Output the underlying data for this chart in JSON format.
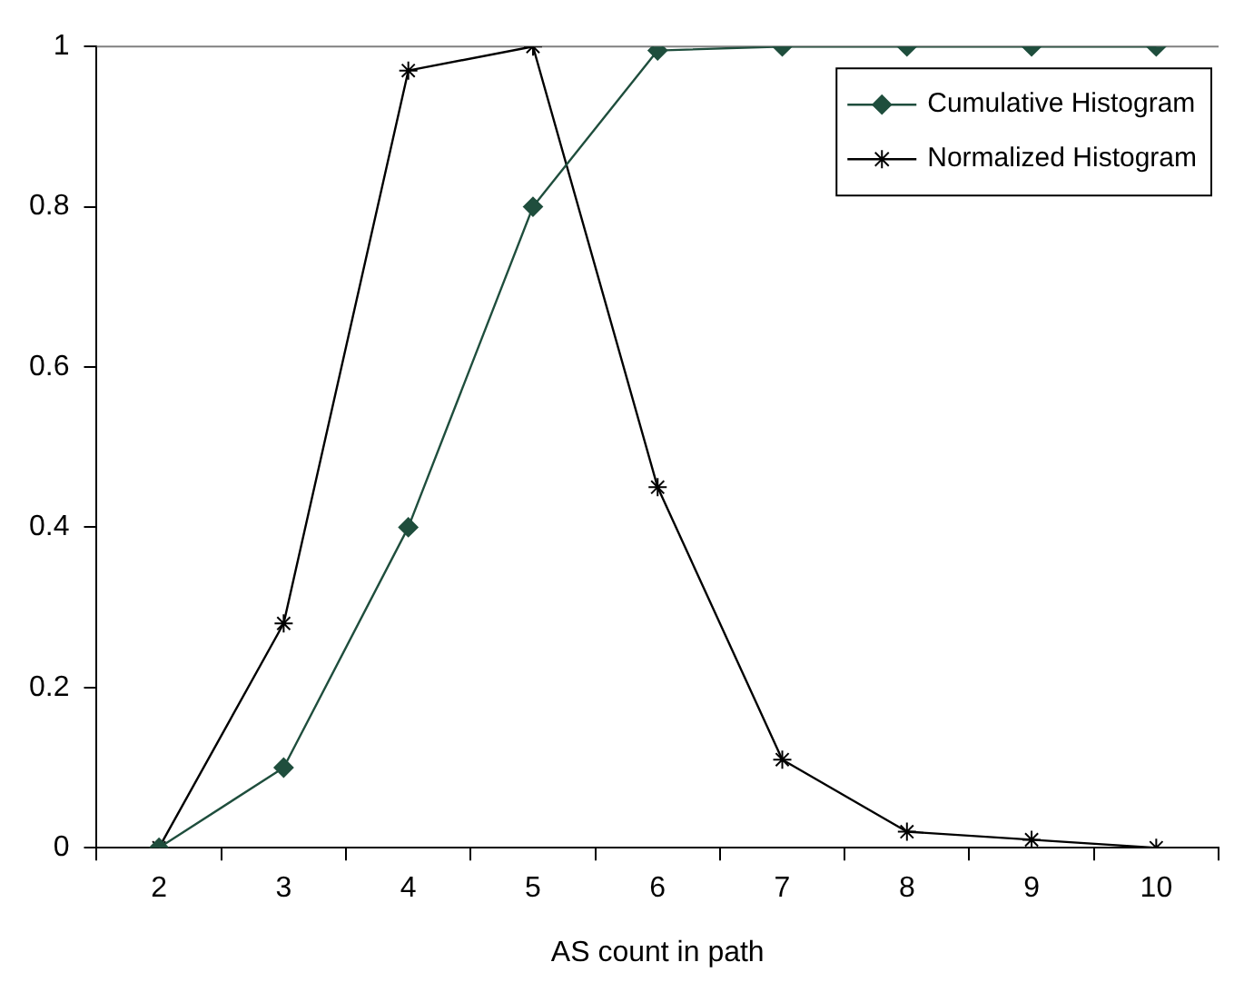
{
  "chart_data": {
    "type": "line",
    "xlabel": "AS count in path",
    "categories": [
      "2",
      "3",
      "4",
      "5",
      "6",
      "7",
      "8",
      "9",
      "10"
    ],
    "series": [
      {
        "name": "Cumulative Histogram",
        "color": "#1f4e3d",
        "marker": "diamond",
        "values": [
          0,
          0.1,
          0.4,
          0.8,
          0.995,
          1,
          1,
          1,
          1
        ]
      },
      {
        "name": "Normalized Histogram",
        "color": "#000000",
        "marker": "cross",
        "values": [
          0,
          0.28,
          0.97,
          1,
          0.45,
          0.11,
          0.02,
          0.01,
          0
        ]
      }
    ],
    "ylim": [
      0,
      1
    ],
    "yticks": [
      0,
      0.2,
      0.4,
      0.6,
      0.8,
      1
    ],
    "grid": false,
    "legend": "top right",
    "ref_lines": [
      {
        "axis": "y",
        "value": 1,
        "color": "#808080"
      }
    ]
  }
}
